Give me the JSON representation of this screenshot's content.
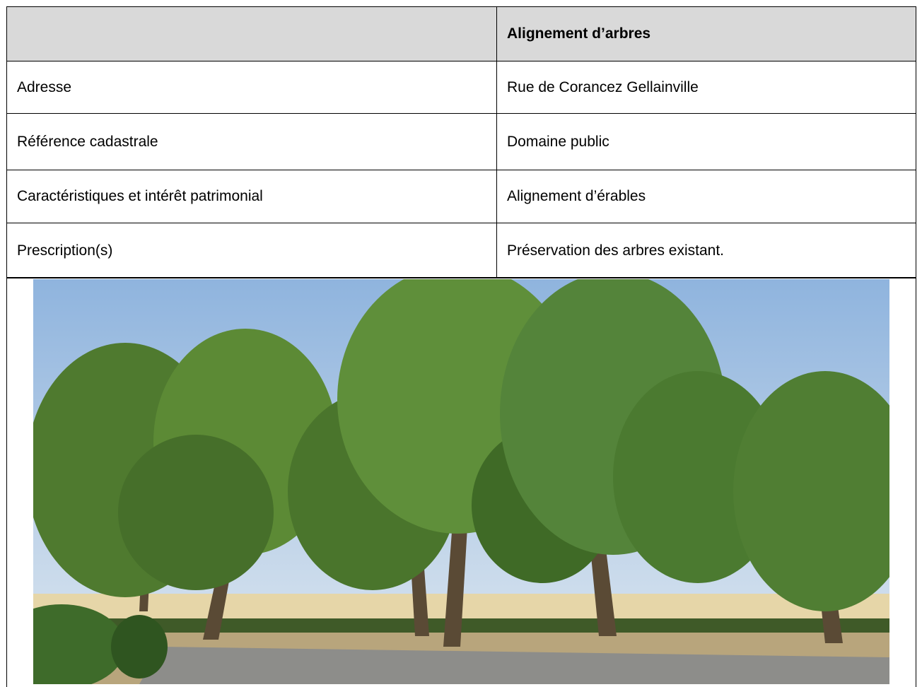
{
  "header": {
    "title": "Alignement d’arbres"
  },
  "table": {
    "rows": [
      [
        "Adresse",
        "Rue de Corancez Gellainville"
      ],
      [
        "Référence cadastrale",
        "Domaine public"
      ],
      [
        "Caractéristiques et intérêt patrimonial",
        "Alignement d’érables"
      ],
      [
        "Prescription(s)",
        "Préservation des arbres existant."
      ]
    ]
  }
}
